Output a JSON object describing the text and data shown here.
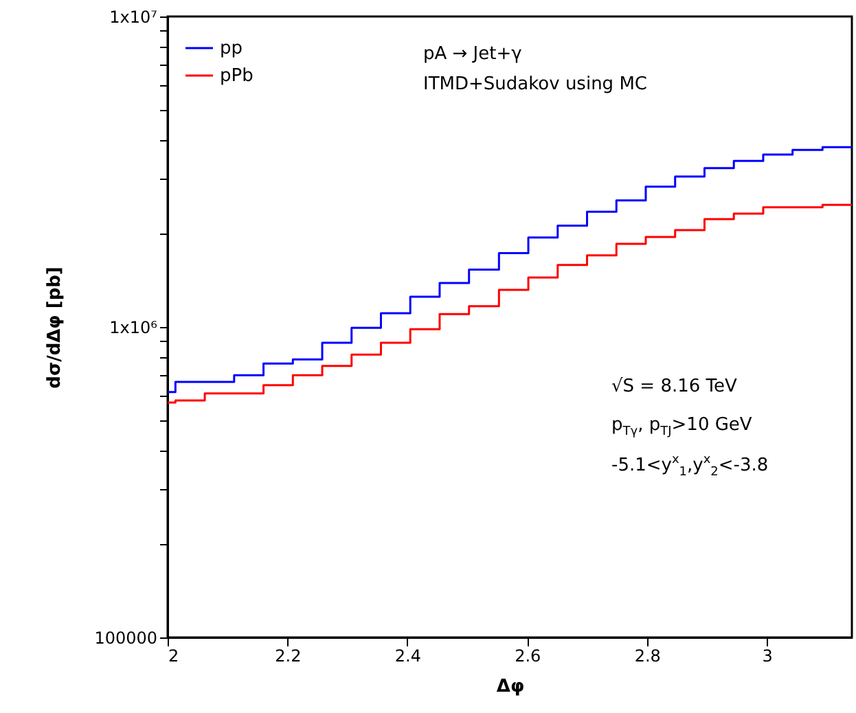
{
  "chart_data": {
    "type": "step",
    "xlabel": "Δφ",
    "ylabel": "dσ/dΔφ [pb]",
    "x": [
      2,
      2.013,
      2.062,
      2.111,
      2.16,
      2.209,
      2.258,
      2.307,
      2.356,
      2.405,
      2.454,
      2.503,
      2.553,
      2.602,
      2.651,
      2.7,
      2.749,
      2.798,
      2.847,
      2.896,
      2.945,
      2.994,
      3.043,
      3.093,
      3.142
    ],
    "series": [
      {
        "name": "pp",
        "color": "#0000ff",
        "values": [
          617000,
          665000,
          665000,
          699000,
          762000,
          786000,
          889000,
          994000,
          1107000,
          1252000,
          1386000,
          1530000,
          1730000,
          1941000,
          2121000,
          2349000,
          2556000,
          2831000,
          3052000,
          3246000,
          3426000,
          3594000,
          3717000,
          3794000,
          3794000
        ]
      },
      {
        "name": "pPb",
        "color": "#ff0000",
        "values": [
          571000,
          580000,
          611000,
          611000,
          649000,
          699000,
          749000,
          815000,
          889000,
          984000,
          1100000,
          1166000,
          1317000,
          1444000,
          1583000,
          1700000,
          1852000,
          1949000,
          2051000,
          2226000,
          2318000,
          2429000,
          2429000,
          2472000,
          2472000
        ]
      }
    ],
    "xlim": [
      2,
      3.142
    ],
    "xticks": [
      2,
      2.2,
      2.4,
      2.6,
      2.8,
      3
    ],
    "ylim": [
      100000,
      10000000
    ],
    "log": true,
    "yticks": [
      {
        "value": 100000,
        "label": "100000"
      },
      {
        "value": 200000,
        "label": null
      },
      {
        "value": 300000,
        "label": null
      },
      {
        "value": 400000,
        "label": null
      },
      {
        "value": 500000,
        "label": null
      },
      {
        "value": 600000,
        "label": null
      },
      {
        "value": 700000,
        "label": null
      },
      {
        "value": 800000,
        "label": null
      },
      {
        "value": 900000,
        "label": null
      },
      {
        "value": 1000000,
        "label": "1x10⁶"
      },
      {
        "value": 2000000,
        "label": null
      },
      {
        "value": 3000000,
        "label": null
      },
      {
        "value": 4000000,
        "label": null
      },
      {
        "value": 5000000,
        "label": null
      },
      {
        "value": 6000000,
        "label": null
      },
      {
        "value": 7000000,
        "label": null
      },
      {
        "value": 8000000,
        "label": null
      },
      {
        "value": 9000000,
        "label": null
      },
      {
        "value": 10000000,
        "label": "1x10⁷"
      }
    ],
    "grid": false,
    "legend": "top left",
    "annotations": [
      "pA → Jet+γ",
      "ITMD+Sudakov using MC",
      "√S = 8.16 TeV",
      "p$_{Tγ}$, p$_{TJ}$>10 GeV",
      "-5.1<y$^{x}$$_{1}$,y$^{x}$$_{2}$<-3.8"
    ]
  }
}
